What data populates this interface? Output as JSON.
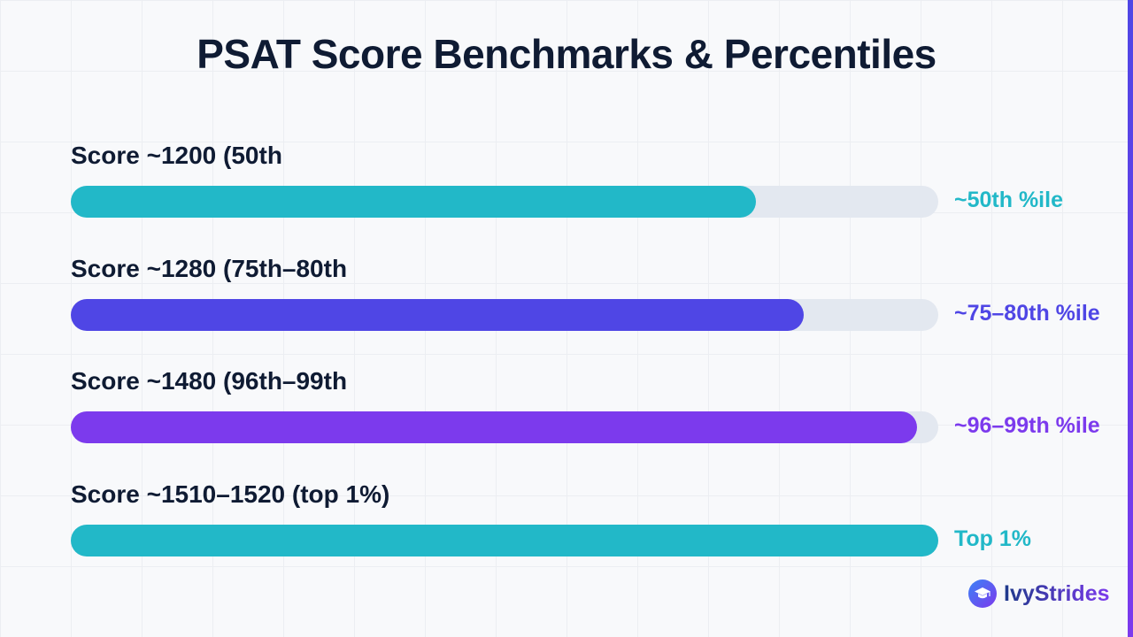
{
  "title": "PSAT Score Benchmarks & Percentiles",
  "colors": {
    "teal": "#22b8c8",
    "indigo": "#4f46e5",
    "violet": "#7c3aed",
    "track": "#e3e8f0",
    "title": "#0f1b33"
  },
  "chart_data": {
    "type": "bar",
    "orientation": "horizontal",
    "title": "PSAT Score Benchmarks & Percentiles",
    "xlim": [
      0,
      100
    ],
    "grid": false,
    "legend": "none",
    "rows": [
      {
        "label": "Score ~1200 (50th",
        "value": 79,
        "value_label": "~50th %ile",
        "color": "#22b8c8"
      },
      {
        "label": "Score ~1280 (75th–80th",
        "value": 84.5,
        "value_label": "~75–80th %ile",
        "color": "#4f46e5"
      },
      {
        "label": "Score ~1480 (96th–99th",
        "value": 97.5,
        "value_label": "~96–99th %ile",
        "color": "#7c3aed"
      },
      {
        "label": "Score ~1510–1520 (top 1%)",
        "value": 100,
        "value_label": "Top 1%",
        "color": "#22b8c8"
      }
    ]
  },
  "brand": {
    "name": "IvyStrides",
    "icon": "graduation-cap-icon"
  }
}
